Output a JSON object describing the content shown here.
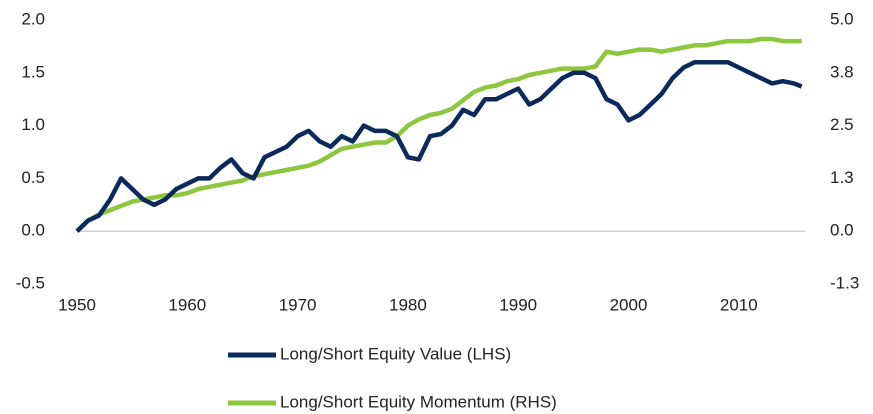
{
  "chart_data": {
    "type": "line",
    "x": [
      1950,
      1951,
      1952,
      1953,
      1954,
      1955,
      1956,
      1957,
      1958,
      1959,
      1960,
      1961,
      1962,
      1963,
      1964,
      1965,
      1966,
      1967,
      1968,
      1969,
      1970,
      1971,
      1972,
      1973,
      1974,
      1975,
      1976,
      1977,
      1978,
      1979,
      1980,
      1981,
      1982,
      1983,
      1984,
      1985,
      1986,
      1987,
      1988,
      1989,
      1990,
      1991,
      1992,
      1993,
      1994,
      1995,
      1996,
      1997,
      1998,
      1999,
      2000,
      2001,
      2002,
      2003,
      2004,
      2005,
      2006,
      2007,
      2008,
      2009,
      2010,
      2011,
      2012,
      2013,
      2014,
      2015,
      2015.7
    ],
    "series": [
      {
        "name": "Long/Short Equity Value (LHS)",
        "color": "#0b2a5b",
        "axis": "y",
        "values": [
          0.0,
          0.1,
          0.15,
          0.3,
          0.5,
          0.4,
          0.3,
          0.25,
          0.3,
          0.4,
          0.45,
          0.5,
          0.5,
          0.6,
          0.68,
          0.55,
          0.5,
          0.7,
          0.75,
          0.8,
          0.9,
          0.95,
          0.85,
          0.8,
          0.9,
          0.85,
          1.0,
          0.95,
          0.95,
          0.9,
          0.7,
          0.68,
          0.9,
          0.92,
          1.0,
          1.15,
          1.1,
          1.25,
          1.25,
          1.3,
          1.35,
          1.2,
          1.25,
          1.35,
          1.45,
          1.5,
          1.5,
          1.45,
          1.25,
          1.2,
          1.05,
          1.1,
          1.2,
          1.3,
          1.45,
          1.55,
          1.6,
          1.6,
          1.6,
          1.6,
          1.55,
          1.5,
          1.45,
          1.4,
          1.42,
          1.4,
          1.37
        ]
      },
      {
        "name": "Long/Short Equity Momentum (RHS)",
        "color": "#8dc63f",
        "axis": "y2",
        "values": [
          0.0,
          0.25,
          0.4,
          0.5,
          0.6,
          0.7,
          0.75,
          0.8,
          0.85,
          0.85,
          0.9,
          1.0,
          1.05,
          1.1,
          1.15,
          1.2,
          1.3,
          1.35,
          1.4,
          1.45,
          1.5,
          1.55,
          1.65,
          1.8,
          1.95,
          2.0,
          2.05,
          2.1,
          2.1,
          2.25,
          2.5,
          2.65,
          2.75,
          2.8,
          2.9,
          3.1,
          3.3,
          3.4,
          3.45,
          3.55,
          3.6,
          3.7,
          3.75,
          3.8,
          3.85,
          3.85,
          3.85,
          3.9,
          4.25,
          4.2,
          4.25,
          4.3,
          4.3,
          4.25,
          4.3,
          4.35,
          4.4,
          4.4,
          4.45,
          4.5,
          4.5,
          4.5,
          4.55,
          4.55,
          4.5,
          4.5,
          4.5
        ]
      }
    ],
    "xlim": [
      1950,
      2016
    ],
    "xticks": [
      1950,
      1960,
      1970,
      1980,
      1990,
      2000,
      2010
    ],
    "ylim": [
      -0.5,
      2.0
    ],
    "yticks": [
      -0.5,
      {
        "value": 0,
        "label": "0.0"
      },
      0.5,
      {
        "value": 1,
        "label": "1.0"
      },
      1.5,
      {
        "value": 2,
        "label": "2.0"
      }
    ],
    "y2lim": [
      -1.25,
      5.0
    ],
    "y2ticks": [
      {
        "value": -1.25,
        "label": "-1.3"
      },
      {
        "value": 0,
        "label": "0.0"
      },
      {
        "value": 1.25,
        "label": "1.3"
      },
      2.5,
      {
        "value": 3.75,
        "label": "3.8"
      },
      {
        "value": 5,
        "label": "5.0"
      }
    ]
  }
}
